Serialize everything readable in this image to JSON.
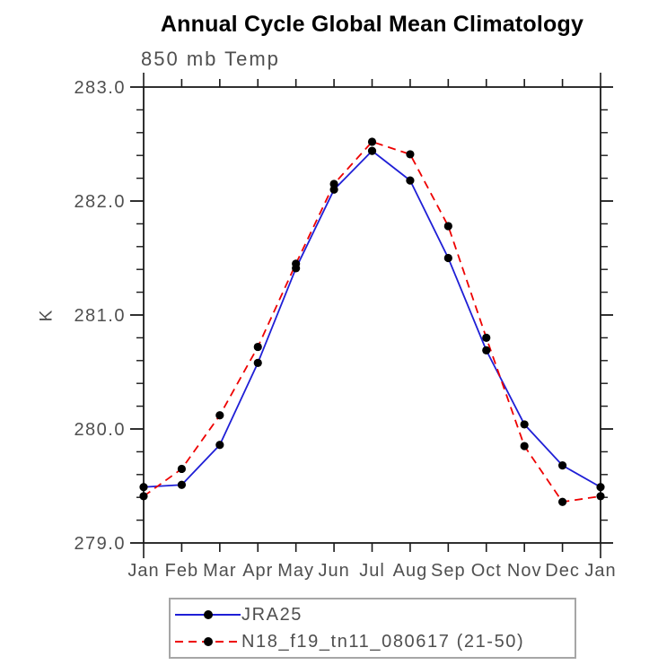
{
  "chart_data": {
    "type": "line",
    "title": "Annual Cycle Global Mean Climatology",
    "subtitle": "850 mb Temp",
    "ylabel": "K",
    "xlabel": "",
    "ylim": [
      279.0,
      283.0
    ],
    "ytick_step": 1.0,
    "ytick_minor_step": 0.2,
    "ytick_labels": [
      "279.0",
      "280.0",
      "281.0",
      "282.0",
      "283.0"
    ],
    "x_categories": [
      "Jan",
      "Feb",
      "Mar",
      "Apr",
      "May",
      "Jun",
      "Jul",
      "Aug",
      "Sep",
      "Oct",
      "Nov",
      "Dec",
      "Jan"
    ],
    "grid": false,
    "legend_position": "bottom",
    "axis_color": "#1a1a1a",
    "label_color": "#4f4f4f",
    "series": [
      {
        "name": "JRA25",
        "color": "#1f1fd6",
        "style": "solid",
        "marker": "circle",
        "marker_color": "#000000",
        "values": [
          279.49,
          279.51,
          279.86,
          280.58,
          281.41,
          282.1,
          282.44,
          282.18,
          281.5,
          280.69,
          280.04,
          279.68,
          279.49
        ]
      },
      {
        "name": "N18_f19_tn11_080617 (21-50)",
        "color": "#ee0000",
        "style": "dashed",
        "marker": "circle",
        "marker_color": "#000000",
        "values": [
          279.41,
          279.65,
          280.12,
          280.72,
          281.45,
          282.15,
          282.52,
          282.41,
          281.78,
          280.8,
          279.85,
          279.36,
          279.41
        ]
      }
    ]
  }
}
